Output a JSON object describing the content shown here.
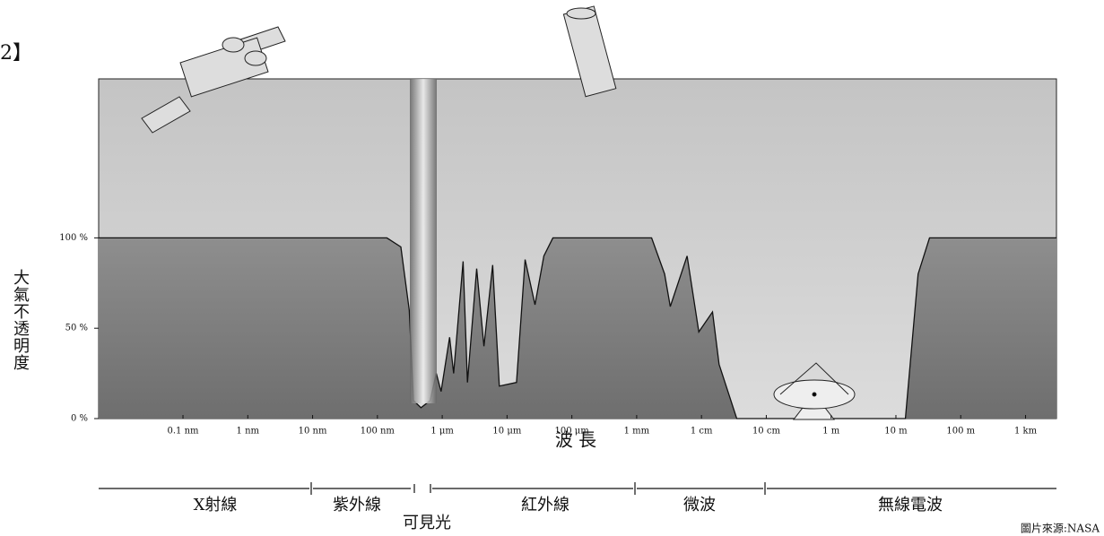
{
  "figure_label": "2】",
  "chart_data": {
    "type": "area",
    "xlabel": "波 長",
    "ylabel": "大氣不透明度",
    "xscale": "log",
    "xlim": [
      5e-12,
      3000
    ],
    "ylim": [
      0,
      188
    ],
    "xticks": [
      {
        "value": 1e-10,
        "label": "0.1 nm"
      },
      {
        "value": 1e-09,
        "label": "1 nm"
      },
      {
        "value": 1e-08,
        "label": "10 nm"
      },
      {
        "value": 1e-07,
        "label": "100 nm"
      },
      {
        "value": 1e-06,
        "label": "1 μm"
      },
      {
        "value": 1e-05,
        "label": "10 μm"
      },
      {
        "value": 0.0001,
        "label": "100 μm"
      },
      {
        "value": 0.001,
        "label": "1 mm"
      },
      {
        "value": 0.01,
        "label": "1 cm"
      },
      {
        "value": 0.1,
        "label": "10 cm"
      },
      {
        "value": 1,
        "label": "1 m"
      },
      {
        "value": 10,
        "label": "10 m"
      },
      {
        "value": 100,
        "label": "100 m"
      },
      {
        "value": 1000,
        "label": "1 km"
      }
    ],
    "yticks": [
      {
        "value": 0,
        "label": "0 %"
      },
      {
        "value": 50,
        "label": "50 %"
      },
      {
        "value": 100,
        "label": "100 %"
      }
    ],
    "x": [
      5e-12,
      1.4e-07,
      2.3e-07,
      3.1e-07,
      3.6e-07,
      4.7e-07,
      6.5e-07,
      8.1e-07,
      9.6e-07,
      1.3e-06,
      1.5e-06,
      2.1e-06,
      2.45e-06,
      3.4e-06,
      4.4e-06,
      6e-06,
      7.6e-06,
      1.4e-05,
      1.9e-05,
      2.7e-05,
      3.7e-05,
      5.1e-05,
      0.0017,
      0.0027,
      0.0033,
      0.006,
      0.0091,
      0.0148,
      0.0187,
      0.035,
      14,
      22,
      33,
      3000
    ],
    "series": [
      {
        "color": "#7a7a7a",
        "values": [
          100,
          100,
          95,
          60,
          10,
          6,
          10,
          25,
          15,
          45,
          25,
          87,
          20,
          83,
          40,
          85,
          18,
          20,
          88,
          63,
          90,
          100,
          100,
          80,
          62,
          90,
          48,
          59,
          30,
          0,
          0,
          80,
          100,
          100
        ]
      }
    ],
    "annotations": [
      "X射線",
      "紫外線",
      "可見光",
      "紅外線",
      "微波",
      "無線電波"
    ],
    "source": "圖片來源:NASA"
  }
}
